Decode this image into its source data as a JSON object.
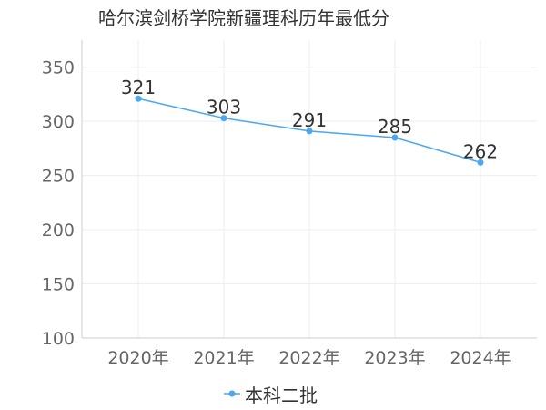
{
  "chart_data": {
    "type": "line",
    "title": "哈尔滨剑桥学院新疆理科历年最低分",
    "categories": [
      "2020年",
      "2021年",
      "2022年",
      "2023年",
      "2024年"
    ],
    "series": [
      {
        "name": "本科二批",
        "values": [
          321,
          303,
          291,
          285,
          262
        ]
      }
    ],
    "ylim": [
      100,
      375
    ],
    "yticks": [
      100,
      150,
      200,
      250,
      300,
      350
    ],
    "xlabel": "",
    "ylabel": "",
    "grid": true,
    "legend": "bottom",
    "colors": {
      "series": "#4aa7f0",
      "axis": "#cccccc",
      "grid": "#eeeeee"
    }
  }
}
